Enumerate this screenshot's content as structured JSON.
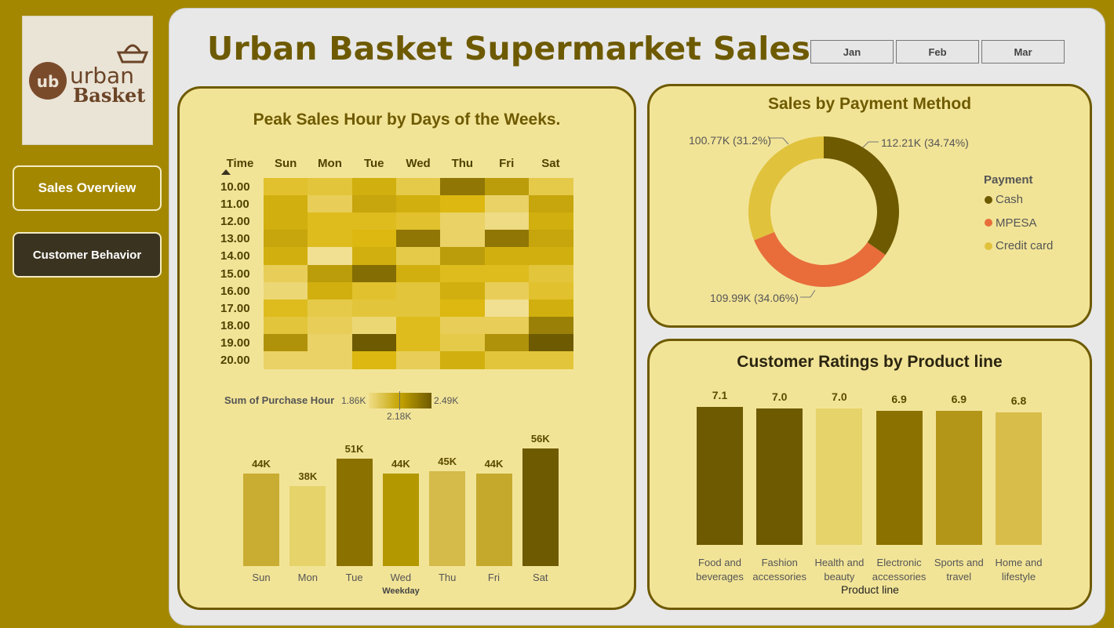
{
  "app": {
    "title": "Urban Basket Supermarket Sales"
  },
  "logo": {
    "line1": "urban",
    "line2": "Basket",
    "monogram": "ub"
  },
  "nav": {
    "overview": "Sales Overview",
    "behavior": "Customer Behavior"
  },
  "months": [
    "Jan",
    "Feb",
    "Mar"
  ],
  "colors": {
    "accent": "#a38700",
    "dark": "#6e5a00",
    "panel": "#f2e497",
    "cash": "#6e5a00",
    "mpesa": "#e86d3b",
    "credit": "#e0c23c"
  },
  "heatmap": {
    "title": "Peak Sales Hour by Days of the Weeks.",
    "time_header": "Time",
    "days": [
      "Sun",
      "Mon",
      "Tue",
      "Wed",
      "Thu",
      "Fri",
      "Sat"
    ],
    "times": [
      "10.00",
      "11.00",
      "12.00",
      "13.00",
      "14.00",
      "15.00",
      "16.00",
      "17.00",
      "18.00",
      "19.00",
      "20.00"
    ],
    "levels": [
      [
        0.4,
        0.35,
        0.55,
        0.3,
        0.85,
        0.65,
        0.3
      ],
      [
        0.55,
        0.25,
        0.6,
        0.55,
        0.5,
        0.2,
        0.6
      ],
      [
        0.55,
        0.45,
        0.45,
        0.4,
        0.2,
        0.1,
        0.55
      ],
      [
        0.6,
        0.45,
        0.5,
        0.85,
        0.2,
        0.85,
        0.6
      ],
      [
        0.55,
        0.05,
        0.55,
        0.3,
        0.65,
        0.55,
        0.55
      ],
      [
        0.25,
        0.65,
        0.9,
        0.55,
        0.45,
        0.45,
        0.35
      ],
      [
        0.15,
        0.55,
        0.4,
        0.35,
        0.55,
        0.25,
        0.4
      ],
      [
        0.45,
        0.3,
        0.35,
        0.35,
        0.5,
        0.05,
        0.55
      ],
      [
        0.35,
        0.25,
        0.15,
        0.45,
        0.25,
        0.25,
        0.8
      ],
      [
        0.7,
        0.2,
        1.0,
        0.45,
        0.3,
        0.7,
        1.0
      ],
      [
        0.2,
        0.2,
        0.5,
        0.25,
        0.55,
        0.35,
        0.35
      ]
    ],
    "legend": {
      "label": "Sum of Purchase Hour",
      "min": "1.86K",
      "mid": "2.18K",
      "max": "2.49K"
    }
  },
  "weekday_chart": {
    "xlabel": "Weekday",
    "chart_data": {
      "type": "bar",
      "categories": [
        "Sun",
        "Mon",
        "Tue",
        "Wed",
        "Thu",
        "Fri",
        "Sat"
      ],
      "values": [
        44,
        38,
        51,
        44,
        45,
        44,
        56
      ],
      "value_labels": [
        "44K",
        "38K",
        "51K",
        "44K",
        "45K",
        "44K",
        "56K"
      ],
      "xlabel": "Weekday",
      "colors": [
        "#c9ad33",
        "#e6d36a",
        "#8a7100",
        "#b39800",
        "#d4bb4a",
        "#c4a92d",
        "#6e5a00"
      ]
    }
  },
  "payment": {
    "title": "Sales by Payment Method",
    "legend_title": "Payment",
    "chart_data": {
      "type": "pie",
      "categories": [
        "Cash",
        "MPESA",
        "Credit card"
      ],
      "values": [
        112.21,
        109.99,
        100.77
      ],
      "percentages": [
        34.74,
        34.06,
        31.2
      ],
      "labels": [
        "112.21K (34.74%)",
        "109.99K (34.06%)",
        "100.77K (31.2%)"
      ],
      "colors": [
        "#6e5a00",
        "#e86d3b",
        "#e0c23c"
      ]
    }
  },
  "ratings": {
    "title": "Customer Ratings by Product line",
    "xlabel": "Product line",
    "chart_data": {
      "type": "bar",
      "categories": [
        "Food and beverages",
        "Fashion accessories",
        "Health and beauty",
        "Electronic accessories",
        "Sports and travel",
        "Home and lifestyle"
      ],
      "category_lines": [
        [
          "Food and",
          "beverages"
        ],
        [
          "Fashion",
          "accessories"
        ],
        [
          "Health and",
          "beauty"
        ],
        [
          "Electronic",
          "accessories"
        ],
        [
          "Sports and",
          "travel"
        ],
        [
          "Home and",
          "lifestyle"
        ]
      ],
      "values": [
        7.1,
        7.0,
        7.0,
        6.9,
        6.9,
        6.8
      ],
      "value_labels": [
        "7.1",
        "7.0",
        "7.0",
        "6.9",
        "6.9",
        "6.8"
      ],
      "xlabel": "Product line",
      "colors": [
        "#6e5a00",
        "#6e5a00",
        "#e6d36a",
        "#8a7100",
        "#b39618",
        "#d9bd4a"
      ]
    }
  }
}
